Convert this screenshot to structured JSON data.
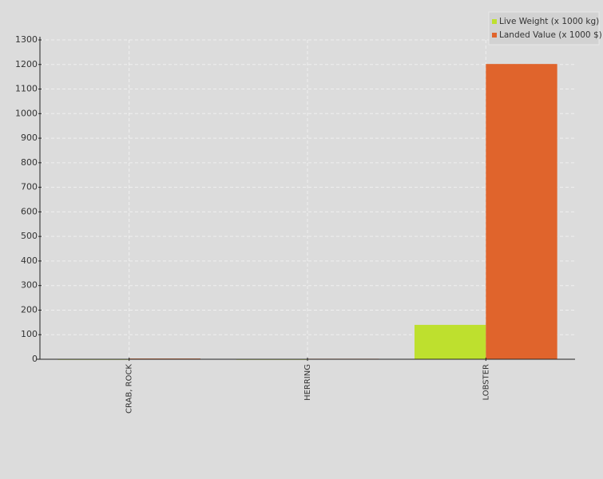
{
  "chart_data": {
    "type": "bar",
    "categories": [
      "CRAB, ROCK",
      "HERRING",
      "LOBSTER"
    ],
    "series": [
      {
        "name": "Live Weight (x 1000 kg)",
        "color": "#bee02e",
        "values": [
          1,
          1,
          140
        ]
      },
      {
        "name": "Landed Value (x 1000 $)",
        "color": "#e0642c",
        "values": [
          3,
          2,
          1202
        ]
      }
    ],
    "ylim": [
      0,
      1300
    ],
    "yticks": [
      0,
      100,
      200,
      300,
      400,
      500,
      600,
      700,
      800,
      900,
      1000,
      1100,
      1200,
      1300
    ],
    "grid": true,
    "legend": "top-right"
  }
}
